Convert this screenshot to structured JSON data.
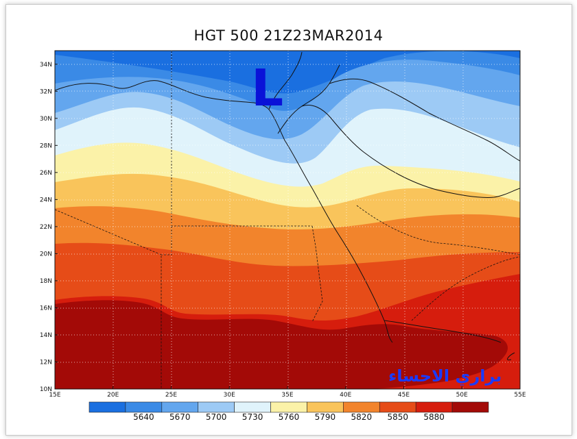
{
  "title": "HGT 500 21Z23MAR2014",
  "low_marker": "L",
  "watermark": "براري الاحساء",
  "lat_labels": [
    "34N",
    "32N",
    "30N",
    "28N",
    "26N",
    "24N",
    "22N",
    "20N",
    "18N",
    "16N",
    "14N",
    "12N",
    "10N"
  ],
  "lon_labels": [
    "15E",
    "20E",
    "25E",
    "30E",
    "35E",
    "40E",
    "45E",
    "50E",
    "55E"
  ],
  "colorbar": {
    "labels": [
      "5640",
      "5670",
      "5700",
      "5730",
      "5760",
      "5790",
      "5820",
      "5850",
      "5880"
    ],
    "colors": [
      "#1a6fe0",
      "#3a8ae6",
      "#63a6ee",
      "#9dcaf5",
      "#e0f3fb",
      "#fbf2a8",
      "#f9c45b",
      "#f2842c",
      "#e64c18",
      "#d61d0d",
      "#a30a07"
    ]
  }
}
